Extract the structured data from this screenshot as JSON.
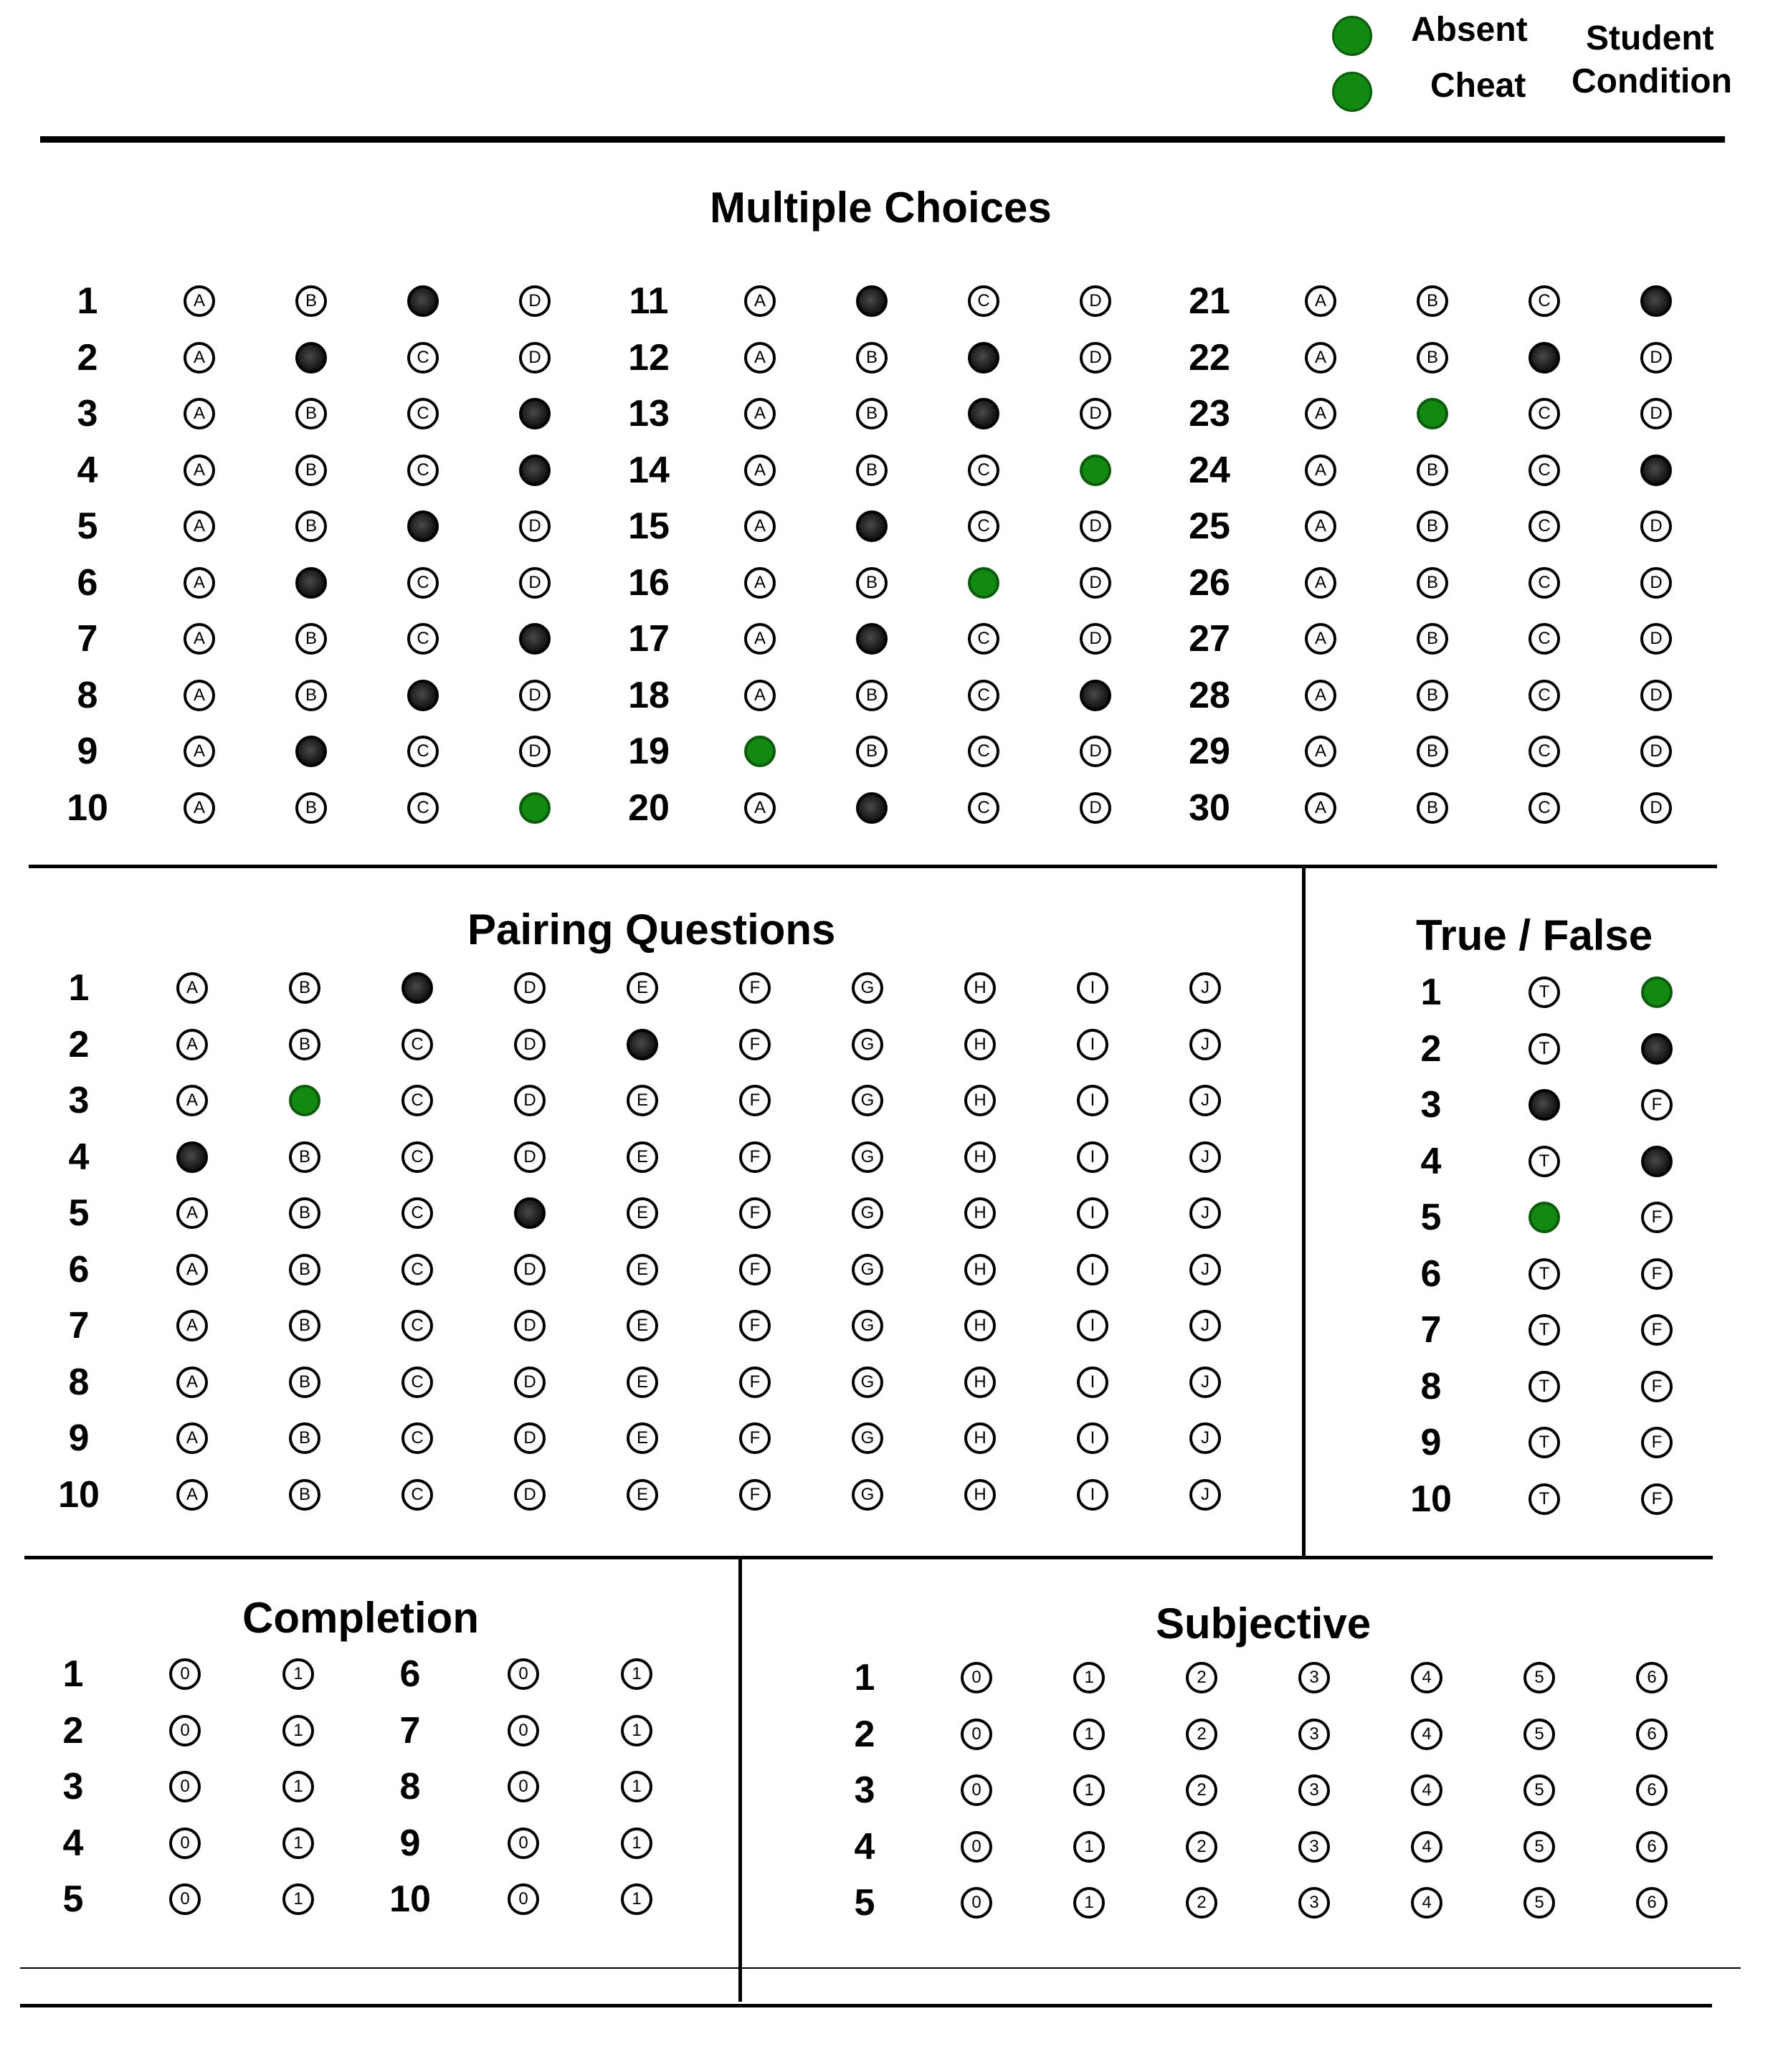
{
  "header": {
    "legend": [
      {
        "label": "Absent",
        "color": "#128a12"
      },
      {
        "label": "Cheat",
        "color": "#128a12"
      }
    ],
    "student_condition_line1": "Student",
    "student_condition_line2": "Condition"
  },
  "multiple_choice": {
    "title": "Multiple Choices",
    "options": [
      "A",
      "B",
      "C",
      "D"
    ],
    "questions": [
      {
        "num": "1",
        "mark": "C",
        "style": "dark"
      },
      {
        "num": "2",
        "mark": "B",
        "style": "dark"
      },
      {
        "num": "3",
        "mark": "D",
        "style": "dark"
      },
      {
        "num": "4",
        "mark": "D",
        "style": "dark"
      },
      {
        "num": "5",
        "mark": "C",
        "style": "dark"
      },
      {
        "num": "6",
        "mark": "B",
        "style": "dark"
      },
      {
        "num": "7",
        "mark": "D",
        "style": "dark"
      },
      {
        "num": "8",
        "mark": "C",
        "style": "dark"
      },
      {
        "num": "9",
        "mark": "B",
        "style": "dark"
      },
      {
        "num": "10",
        "mark": "D",
        "style": "green"
      },
      {
        "num": "11",
        "mark": "B",
        "style": "dark"
      },
      {
        "num": "12",
        "mark": "C",
        "style": "dark"
      },
      {
        "num": "13",
        "mark": "C",
        "style": "dark"
      },
      {
        "num": "14",
        "mark": "D",
        "style": "green"
      },
      {
        "num": "15",
        "mark": "B",
        "style": "dark"
      },
      {
        "num": "16",
        "mark": "C",
        "style": "green"
      },
      {
        "num": "17",
        "mark": "B",
        "style": "dark"
      },
      {
        "num": "18",
        "mark": "D",
        "style": "dark"
      },
      {
        "num": "19",
        "mark": "A",
        "style": "green"
      },
      {
        "num": "20",
        "mark": "B",
        "style": "dark"
      },
      {
        "num": "21",
        "mark": "D",
        "style": "dark"
      },
      {
        "num": "22",
        "mark": "C",
        "style": "dark"
      },
      {
        "num": "23",
        "mark": "B",
        "style": "green"
      },
      {
        "num": "24",
        "mark": "D",
        "style": "dark"
      },
      {
        "num": "25",
        "mark": "",
        "style": ""
      },
      {
        "num": "26",
        "mark": "",
        "style": ""
      },
      {
        "num": "27",
        "mark": "",
        "style": ""
      },
      {
        "num": "28",
        "mark": "",
        "style": ""
      },
      {
        "num": "29",
        "mark": "",
        "style": ""
      },
      {
        "num": "30",
        "mark": "",
        "style": ""
      }
    ]
  },
  "pairing": {
    "title": "Pairing Questions",
    "options": [
      "A",
      "B",
      "C",
      "D",
      "E",
      "F",
      "G",
      "H",
      "I",
      "J"
    ],
    "questions": [
      {
        "num": "1",
        "mark": "C",
        "style": "dark"
      },
      {
        "num": "2",
        "mark": "E",
        "style": "dark"
      },
      {
        "num": "3",
        "mark": "B",
        "style": "green"
      },
      {
        "num": "4",
        "mark": "A",
        "style": "dark"
      },
      {
        "num": "5",
        "mark": "D",
        "style": "dark"
      },
      {
        "num": "6",
        "mark": "",
        "style": ""
      },
      {
        "num": "7",
        "mark": "",
        "style": ""
      },
      {
        "num": "8",
        "mark": "",
        "style": ""
      },
      {
        "num": "9",
        "mark": "",
        "style": ""
      },
      {
        "num": "10",
        "mark": "",
        "style": ""
      }
    ]
  },
  "true_false": {
    "title": "True / False",
    "options": [
      "T",
      "F"
    ],
    "questions": [
      {
        "num": "1",
        "mark": "F",
        "style": "green"
      },
      {
        "num": "2",
        "mark": "F",
        "style": "dark"
      },
      {
        "num": "3",
        "mark": "T",
        "style": "dark"
      },
      {
        "num": "4",
        "mark": "F",
        "style": "dark"
      },
      {
        "num": "5",
        "mark": "T",
        "style": "green"
      },
      {
        "num": "6",
        "mark": "",
        "style": ""
      },
      {
        "num": "7",
        "mark": "",
        "style": ""
      },
      {
        "num": "8",
        "mark": "",
        "style": ""
      },
      {
        "num": "9",
        "mark": "",
        "style": ""
      },
      {
        "num": "10",
        "mark": "",
        "style": ""
      }
    ]
  },
  "completion": {
    "title": "Completion",
    "options": [
      "0",
      "1"
    ],
    "questions": [
      {
        "num": "1"
      },
      {
        "num": "2"
      },
      {
        "num": "3"
      },
      {
        "num": "4"
      },
      {
        "num": "5"
      },
      {
        "num": "6"
      },
      {
        "num": "7"
      },
      {
        "num": "8"
      },
      {
        "num": "9"
      },
      {
        "num": "10"
      }
    ]
  },
  "subjective": {
    "title": "Subjective",
    "options": [
      "0",
      "1",
      "2",
      "3",
      "4",
      "5",
      "6"
    ],
    "questions": [
      {
        "num": "1"
      },
      {
        "num": "2"
      },
      {
        "num": "3"
      },
      {
        "num": "4"
      },
      {
        "num": "5"
      }
    ]
  }
}
